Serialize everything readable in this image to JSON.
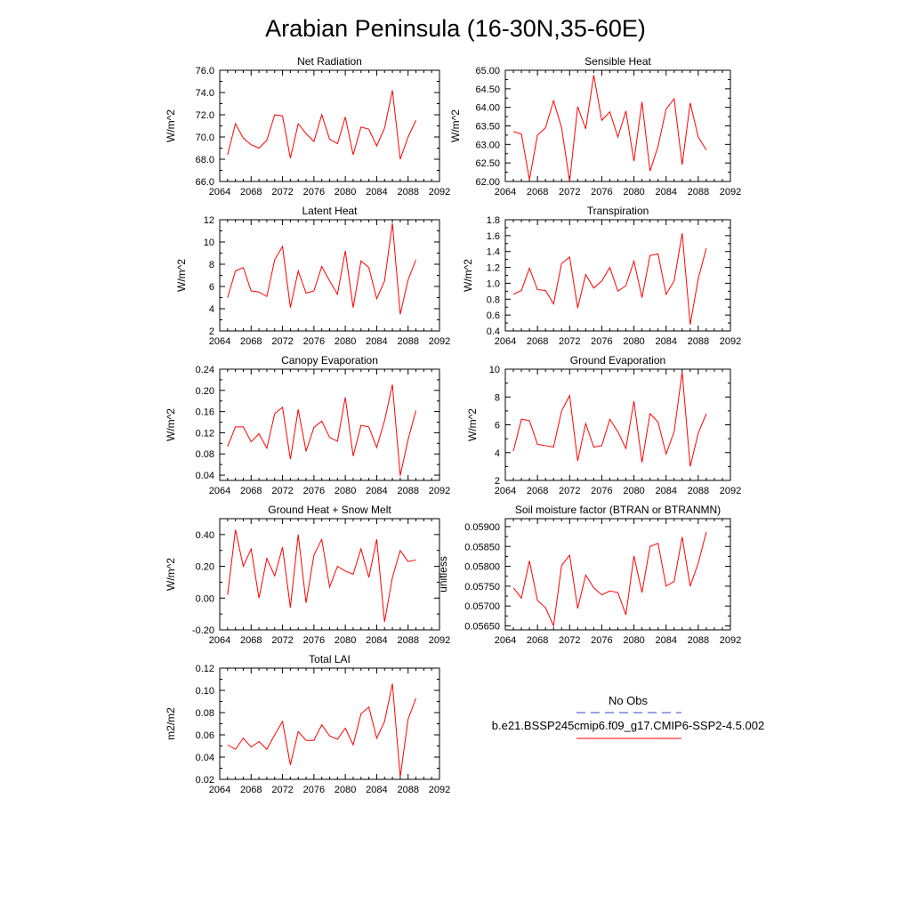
{
  "figure": {
    "title": "Arabian Peninsula (16-30N,35-60E)",
    "legend": {
      "entries": [
        {
          "label": "No Obs",
          "color": "#3344cc",
          "dash": true
        },
        {
          "label": "b.e21.BSSP245cmip6.f09_g17.CMIP6-SSP2-4.5.002",
          "color": "#ff0000",
          "dash": false
        }
      ]
    }
  },
  "chart_data": [
    {
      "type": "line",
      "title": "Net Radiation",
      "ylabel": "W/m^2",
      "xlim": [
        2064,
        2092
      ],
      "ylim": [
        66,
        76
      ],
      "xticks": [
        2064,
        2068,
        2072,
        2076,
        2080,
        2084,
        2088,
        2092
      ],
      "xtick_labels": [
        "2064",
        "2068",
        "2072",
        "2076",
        "2080",
        "2084",
        "2088",
        "2092"
      ],
      "yticks": [
        66,
        68,
        70,
        72,
        74,
        76
      ],
      "ytick_labels": [
        "66.0",
        "68.0",
        "70.0",
        "72.0",
        "74.0",
        "76.0"
      ],
      "series": [
        {
          "color": "#ff0000",
          "x": [
            2065,
            2066,
            2067,
            2068,
            2069,
            2070,
            2071,
            2072,
            2073,
            2074,
            2075,
            2076,
            2077,
            2078,
            2079,
            2080,
            2081,
            2082,
            2083,
            2084,
            2085,
            2086,
            2087,
            2088,
            2089
          ],
          "y": [
            68.4,
            71.2,
            69.9,
            69.3,
            69.0,
            69.7,
            72.0,
            71.9,
            68.1,
            71.2,
            70.3,
            69.6,
            72.0,
            69.8,
            69.4,
            71.8,
            68.4,
            70.9,
            70.7,
            69.2,
            70.8,
            74.2,
            68.0,
            70.0,
            71.5
          ]
        }
      ]
    },
    {
      "type": "line",
      "title": "Sensible Heat",
      "ylabel": "W/m^2",
      "xlim": [
        2064,
        2092
      ],
      "ylim": [
        62,
        65
      ],
      "xticks": [
        2064,
        2068,
        2072,
        2076,
        2080,
        2084,
        2088,
        2092
      ],
      "xtick_labels": [
        "2064",
        "2068",
        "2072",
        "2076",
        "2080",
        "2084",
        "2088",
        "2092"
      ],
      "yticks": [
        62.0,
        62.5,
        63.0,
        63.5,
        64.0,
        64.5,
        65.0
      ],
      "ytick_labels": [
        "62.00",
        "62.50",
        "63.00",
        "63.50",
        "64.00",
        "64.50",
        "65.00"
      ],
      "series": [
        {
          "color": "#ff0000",
          "x": [
            2065,
            2066,
            2067,
            2068,
            2069,
            2070,
            2071,
            2072,
            2073,
            2074,
            2075,
            2076,
            2077,
            2078,
            2079,
            2080,
            2081,
            2082,
            2083,
            2084,
            2085,
            2086,
            2087,
            2088,
            2089
          ],
          "y": [
            63.35,
            63.28,
            62.05,
            63.25,
            63.45,
            64.18,
            63.45,
            62.0,
            64.02,
            63.42,
            64.87,
            63.65,
            63.88,
            63.2,
            63.9,
            62.55,
            64.15,
            62.28,
            62.95,
            63.95,
            64.23,
            62.45,
            64.12,
            63.2,
            62.85
          ]
        }
      ]
    },
    {
      "type": "line",
      "title": "Latent Heat",
      "ylabel": "W/m^2",
      "xlim": [
        2064,
        2092
      ],
      "ylim": [
        2,
        12
      ],
      "xticks": [
        2064,
        2068,
        2072,
        2076,
        2080,
        2084,
        2088,
        2092
      ],
      "xtick_labels": [
        "2064",
        "2068",
        "2072",
        "2076",
        "2080",
        "2084",
        "2088",
        "2092"
      ],
      "yticks": [
        2,
        4,
        6,
        8,
        10,
        12
      ],
      "ytick_labels": [
        "2",
        "4",
        "6",
        "8",
        "10",
        "12"
      ],
      "series": [
        {
          "color": "#ff0000",
          "x": [
            2065,
            2066,
            2067,
            2068,
            2069,
            2070,
            2071,
            2072,
            2073,
            2074,
            2075,
            2076,
            2077,
            2078,
            2079,
            2080,
            2081,
            2082,
            2083,
            2084,
            2085,
            2086,
            2087,
            2088,
            2089
          ],
          "y": [
            5.0,
            7.4,
            7.7,
            5.6,
            5.5,
            5.1,
            8.4,
            9.6,
            4.1,
            7.4,
            5.4,
            5.6,
            7.8,
            6.5,
            5.3,
            9.2,
            4.1,
            8.3,
            7.7,
            4.9,
            6.5,
            11.7,
            3.5,
            6.6,
            8.4
          ]
        }
      ]
    },
    {
      "type": "line",
      "title": "Transpiration",
      "ylabel": "W/m^2",
      "xlim": [
        2064,
        2092
      ],
      "ylim": [
        0.4,
        1.8
      ],
      "xticks": [
        2064,
        2068,
        2072,
        2076,
        2080,
        2084,
        2088,
        2092
      ],
      "xtick_labels": [
        "2064",
        "2068",
        "2072",
        "2076",
        "2080",
        "2084",
        "2088",
        "2092"
      ],
      "yticks": [
        0.4,
        0.6,
        0.8,
        1.0,
        1.2,
        1.4,
        1.6,
        1.8
      ],
      "ytick_labels": [
        "0.4",
        "0.6",
        "0.8",
        "1.0",
        "1.2",
        "1.4",
        "1.6",
        "1.8"
      ],
      "series": [
        {
          "color": "#ff0000",
          "x": [
            2065,
            2066,
            2067,
            2068,
            2069,
            2070,
            2071,
            2072,
            2073,
            2074,
            2075,
            2076,
            2077,
            2078,
            2079,
            2080,
            2081,
            2082,
            2083,
            2084,
            2085,
            2086,
            2087,
            2088,
            2089
          ],
          "y": [
            0.86,
            0.91,
            1.19,
            0.92,
            0.91,
            0.74,
            1.25,
            1.33,
            0.69,
            1.11,
            0.94,
            1.03,
            1.2,
            0.9,
            0.97,
            1.28,
            0.82,
            1.35,
            1.37,
            0.86,
            1.03,
            1.63,
            0.48,
            1.06,
            1.44
          ]
        }
      ]
    },
    {
      "type": "line",
      "title": "Canopy Evaporation",
      "ylabel": "W/m^2",
      "xlim": [
        2064,
        2092
      ],
      "ylim": [
        0.03,
        0.24
      ],
      "xticks": [
        2064,
        2068,
        2072,
        2076,
        2080,
        2084,
        2088,
        2092
      ],
      "xtick_labels": [
        "2064",
        "2068",
        "2072",
        "2076",
        "2080",
        "2084",
        "2088",
        "2092"
      ],
      "yticks": [
        0.04,
        0.08,
        0.12,
        0.16,
        0.2,
        0.24
      ],
      "ytick_labels": [
        "0.04",
        "0.08",
        "0.12",
        "0.16",
        "0.20",
        "0.24"
      ],
      "series": [
        {
          "color": "#ff0000",
          "x": [
            2065,
            2066,
            2067,
            2068,
            2069,
            2070,
            2071,
            2072,
            2073,
            2074,
            2075,
            2076,
            2077,
            2078,
            2079,
            2080,
            2081,
            2082,
            2083,
            2084,
            2085,
            2086,
            2087,
            2088,
            2089
          ],
          "y": [
            0.094,
            0.131,
            0.131,
            0.103,
            0.118,
            0.091,
            0.156,
            0.168,
            0.07,
            0.164,
            0.085,
            0.13,
            0.142,
            0.111,
            0.104,
            0.187,
            0.076,
            0.134,
            0.131,
            0.092,
            0.143,
            0.211,
            0.039,
            0.107,
            0.162
          ]
        }
      ]
    },
    {
      "type": "line",
      "title": "Ground Evaporation",
      "ylabel": "W/m^2",
      "xlim": [
        2064,
        2092
      ],
      "ylim": [
        2,
        10
      ],
      "xticks": [
        2064,
        2068,
        2072,
        2076,
        2080,
        2084,
        2088,
        2092
      ],
      "xtick_labels": [
        "2064",
        "2068",
        "2072",
        "2076",
        "2080",
        "2084",
        "2088",
        "2092"
      ],
      "yticks": [
        2,
        4,
        6,
        8,
        10
      ],
      "ytick_labels": [
        "2",
        "4",
        "6",
        "8",
        "10"
      ],
      "series": [
        {
          "color": "#ff0000",
          "x": [
            2065,
            2066,
            2067,
            2068,
            2069,
            2070,
            2071,
            2072,
            2073,
            2074,
            2075,
            2076,
            2077,
            2078,
            2079,
            2080,
            2081,
            2082,
            2083,
            2084,
            2085,
            2086,
            2087,
            2088,
            2089
          ],
          "y": [
            4.1,
            6.4,
            6.3,
            4.6,
            4.5,
            4.4,
            7.0,
            8.1,
            3.4,
            6.1,
            4.4,
            4.5,
            6.4,
            5.5,
            4.3,
            7.7,
            3.3,
            6.8,
            6.2,
            3.9,
            5.5,
            9.8,
            3.0,
            5.4,
            6.8
          ]
        }
      ]
    },
    {
      "type": "line",
      "title": "Ground Heat + Snow Melt",
      "ylabel": "W/m^2",
      "xlim": [
        2064,
        2092
      ],
      "ylim": [
        -0.2,
        0.5
      ],
      "xticks": [
        2064,
        2068,
        2072,
        2076,
        2080,
        2084,
        2088,
        2092
      ],
      "xtick_labels": [
        "2064",
        "2068",
        "2072",
        "2076",
        "2080",
        "2084",
        "2088",
        "2092"
      ],
      "yticks": [
        -0.2,
        0.0,
        0.2,
        0.4
      ],
      "ytick_labels": [
        "-0.20",
        "0.00",
        "0.20",
        "0.40"
      ],
      "series": [
        {
          "color": "#ff0000",
          "x": [
            2065,
            2066,
            2067,
            2068,
            2069,
            2070,
            2071,
            2072,
            2073,
            2074,
            2075,
            2076,
            2077,
            2078,
            2079,
            2080,
            2081,
            2082,
            2083,
            2084,
            2085,
            2086,
            2087,
            2088,
            2089
          ],
          "y": [
            0.02,
            0.43,
            0.2,
            0.31,
            0.0,
            0.25,
            0.14,
            0.32,
            -0.06,
            0.4,
            -0.03,
            0.27,
            0.37,
            0.07,
            0.2,
            0.17,
            0.15,
            0.31,
            0.13,
            0.37,
            -0.15,
            0.13,
            0.3,
            0.23,
            0.24
          ]
        }
      ]
    },
    {
      "type": "line",
      "title": "Soil moisture factor (BTRAN or BTRANMN)",
      "ylabel": "unitless",
      "xlim": [
        2064,
        2092
      ],
      "ylim": [
        0.0564,
        0.0592
      ],
      "xticks": [
        2064,
        2068,
        2072,
        2076,
        2080,
        2084,
        2088,
        2092
      ],
      "xtick_labels": [
        "2064",
        "2068",
        "2072",
        "2076",
        "2080",
        "2084",
        "2088",
        "2092"
      ],
      "yticks": [
        0.0565,
        0.057,
        0.0575,
        0.058,
        0.0585,
        0.059
      ],
      "ytick_labels": [
        "0.05650",
        "0.05700",
        "0.05750",
        "0.05800",
        "0.05850",
        "0.05900"
      ],
      "series": [
        {
          "color": "#ff0000",
          "x": [
            2065,
            2066,
            2067,
            2068,
            2069,
            2070,
            2071,
            2072,
            2073,
            2074,
            2075,
            2076,
            2077,
            2078,
            2079,
            2080,
            2081,
            2082,
            2083,
            2084,
            2085,
            2086,
            2087,
            2088,
            2089
          ],
          "y": [
            0.05746,
            0.0572,
            0.05814,
            0.05714,
            0.05696,
            0.0565,
            0.05802,
            0.05828,
            0.05694,
            0.05778,
            0.05746,
            0.05728,
            0.05738,
            0.05734,
            0.05678,
            0.05826,
            0.05734,
            0.0585,
            0.05858,
            0.0575,
            0.05762,
            0.05874,
            0.0575,
            0.05808,
            0.05886
          ]
        }
      ]
    },
    {
      "type": "line",
      "title": "Total LAI",
      "ylabel": "m2/m2",
      "xlim": [
        2064,
        2092
      ],
      "ylim": [
        0.02,
        0.12
      ],
      "xticks": [
        2064,
        2068,
        2072,
        2076,
        2080,
        2084,
        2088,
        2092
      ],
      "xtick_labels": [
        "2064",
        "2068",
        "2072",
        "2076",
        "2080",
        "2084",
        "2088",
        "2092"
      ],
      "yticks": [
        0.02,
        0.04,
        0.06,
        0.08,
        0.1,
        0.12
      ],
      "ytick_labels": [
        "0.02",
        "0.04",
        "0.06",
        "0.08",
        "0.10",
        "0.12"
      ],
      "series": [
        {
          "color": "#ff0000",
          "x": [
            2065,
            2066,
            2067,
            2068,
            2069,
            2070,
            2071,
            2072,
            2073,
            2074,
            2075,
            2076,
            2077,
            2078,
            2079,
            2080,
            2081,
            2082,
            2083,
            2084,
            2085,
            2086,
            2087,
            2088,
            2089
          ],
          "y": [
            0.051,
            0.047,
            0.057,
            0.049,
            0.054,
            0.047,
            0.06,
            0.072,
            0.033,
            0.063,
            0.055,
            0.055,
            0.069,
            0.059,
            0.056,
            0.066,
            0.051,
            0.079,
            0.085,
            0.057,
            0.072,
            0.106,
            0.022,
            0.074,
            0.093
          ]
        }
      ]
    }
  ]
}
